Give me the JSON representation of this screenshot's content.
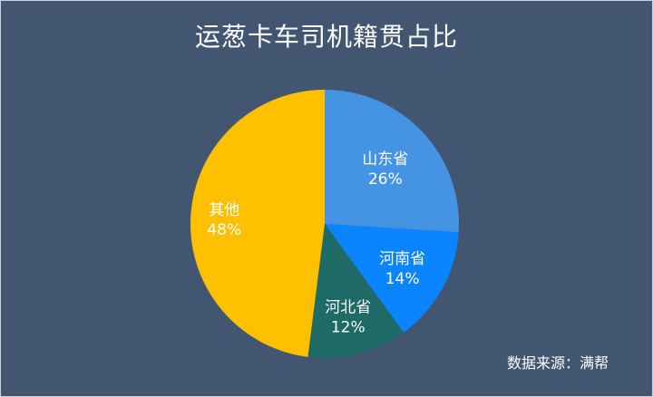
{
  "chart_data": {
    "type": "pie",
    "title": "运葱卡车司机籍贯占比",
    "categories": [
      "山东省",
      "河南省",
      "河北省",
      "其他"
    ],
    "values": [
      26,
      14,
      12,
      48
    ],
    "value_labels": [
      "26%",
      "14%",
      "12%",
      "48%"
    ],
    "colors": [
      "#4593e3",
      "#0a84ff",
      "#1e6a67",
      "#ffc000"
    ],
    "legend": "none",
    "source": "数据来源：满帮"
  }
}
